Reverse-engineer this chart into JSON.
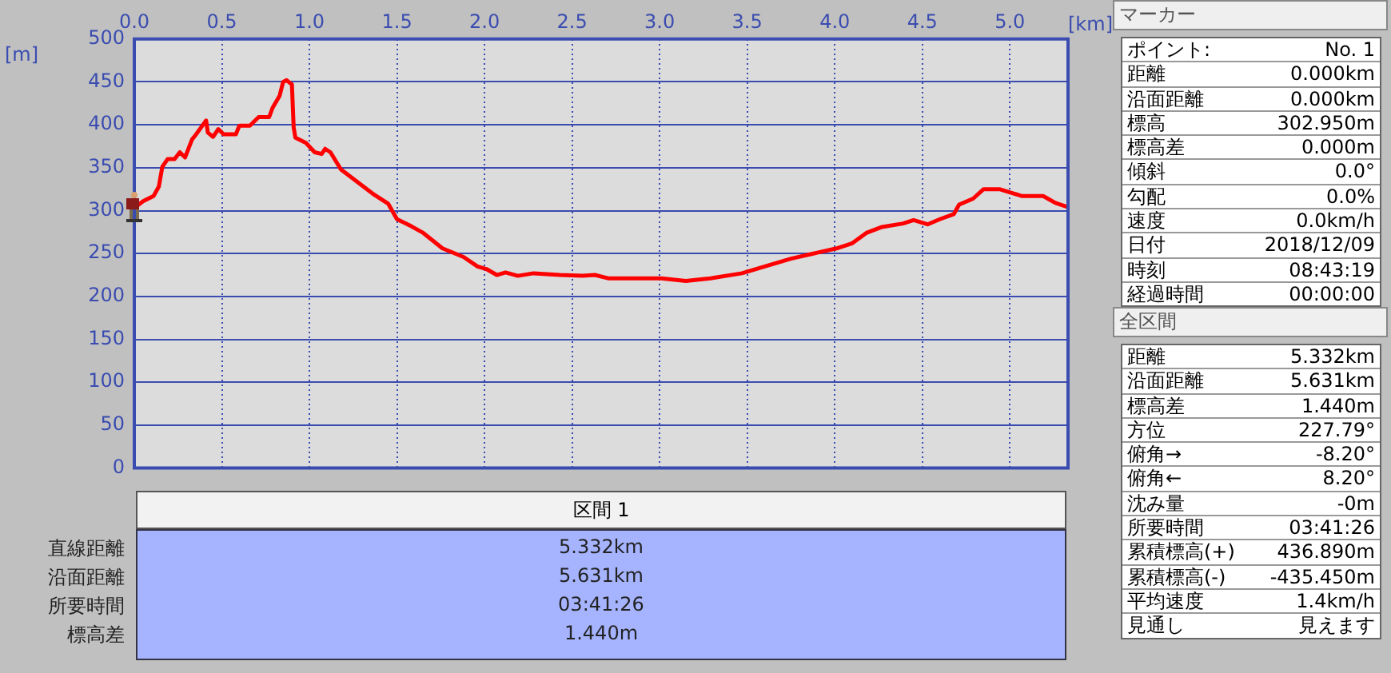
{
  "chart_data": [
    {
      "type": "line",
      "xlabel": "[km]",
      "ylabel": "[m]",
      "color": "#ff0000",
      "grid": true,
      "xlim": [
        0,
        5.332
      ],
      "xticks": [
        {
          "value": 0,
          "label": "0.0"
        },
        0.5,
        {
          "value": 1,
          "label": "1.0"
        },
        1.5,
        {
          "value": 2,
          "label": "2.0"
        },
        2.5,
        {
          "value": 3,
          "label": "3.0"
        },
        3.5,
        {
          "value": 4,
          "label": "4.0"
        },
        4.5,
        {
          "value": 5,
          "label": "5.0"
        }
      ],
      "ylim": [
        0,
        500
      ],
      "yticks": [
        0,
        50,
        100,
        150,
        200,
        250,
        300,
        350,
        400,
        450,
        500
      ],
      "x": [
        0,
        0.05,
        0.11,
        0.14,
        0.16,
        0.19,
        0.23,
        0.26,
        0.29,
        0.33,
        0.35,
        0.41,
        0.42,
        0.45,
        0.48,
        0.51,
        0.58,
        0.6,
        0.66,
        0.71,
        0.77,
        0.79,
        0.83,
        0.85,
        0.87,
        0.9,
        0.91,
        0.92,
        0.98,
        1.03,
        1.07,
        1.09,
        1.12,
        1.18,
        1.27,
        1.36,
        1.45,
        1.5,
        1.58,
        1.65,
        1.76,
        1.88,
        1.96,
        2.01,
        2.07,
        2.12,
        2.19,
        2.28,
        2.43,
        2.56,
        2.63,
        2.71,
        2.86,
        3.01,
        3.15,
        3.29,
        3.47,
        3.6,
        3.75,
        3.9,
        4.01,
        4.1,
        4.18,
        4.27,
        4.39,
        4.45,
        4.53,
        4.6,
        4.68,
        4.71,
        4.79,
        4.85,
        4.94,
        5.07,
        5.19,
        5.26,
        5.332
      ],
      "values": [
        303,
        311,
        317,
        328,
        351,
        360,
        360,
        368,
        362,
        383,
        388,
        405,
        391,
        386,
        395,
        389,
        389,
        399,
        399,
        409,
        409,
        420,
        434,
        450,
        452,
        447,
        397,
        385,
        379,
        368,
        366,
        372,
        368,
        348,
        334,
        320,
        308,
        290,
        282,
        274,
        256,
        246,
        235,
        232,
        225,
        228,
        224,
        227,
        225,
        224,
        225,
        221,
        221,
        221,
        218,
        221,
        227,
        235,
        244,
        251,
        256,
        262,
        274,
        281,
        285,
        289,
        284,
        290,
        296,
        307,
        314,
        325,
        325,
        317,
        317,
        309,
        304
      ]
    },
    {
      "type": "other",
      "title": "マーカー",
      "annotations": [
        "ポイント:",
        "No. 1",
        "距離",
        "0.000km",
        "沿面距離",
        "0.000km",
        "標高",
        "302.950m",
        "標高差",
        "0.000m",
        "傾斜",
        "0.0°",
        "勾配",
        "0.0%",
        "速度",
        "0.0km/h",
        "日付",
        "2018/12/09",
        "時刻",
        "08:43:19",
        "経過時間",
        "00:00:00"
      ]
    },
    {
      "type": "other",
      "title": "全区間",
      "annotations": [
        "距離",
        "5.332km",
        "沿面距離",
        "5.631km",
        "標高差",
        "1.440m",
        "方位",
        "227.79°",
        "俯角→",
        "-8.20°",
        "俯角←",
        "8.20°",
        "沈み量",
        "-0m",
        "所要時間",
        "03:41:26",
        "累積標高(+)",
        "436.890m",
        "累積標高(-)",
        "-435.450m",
        "平均速度",
        "1.4km/h",
        "見通し",
        "見えます"
      ]
    },
    {
      "type": "other",
      "title": "区間 1",
      "annotations": [
        "直線距離",
        "5.332km",
        "沿面距離",
        "5.631km",
        "所要時間",
        "03:41:26",
        "標高差",
        "1.440m"
      ]
    }
  ]
}
